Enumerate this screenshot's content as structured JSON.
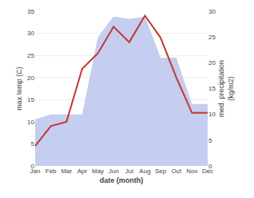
{
  "chart_data": {
    "type": "line",
    "categories": [
      "Jan",
      "Feb",
      "Mar",
      "Apr",
      "May",
      "Jun",
      "Jul",
      "Aug",
      "Sep",
      "Oct",
      "Nov",
      "Dec"
    ],
    "xlabel": "date (month)",
    "ylabel": "max temp (C)",
    "y2label": "med. precipitation\n(kg/m2)",
    "series": [
      {
        "type": "area",
        "axis": "y2",
        "color": "#c5cdf0",
        "values": [
          9.0,
          10.0,
          10.0,
          10.0,
          25.0,
          29.0,
          28.5,
          29.0,
          21.0,
          21.0,
          12.0,
          12.0
        ]
      },
      {
        "type": "line",
        "color": "#c0392b",
        "values": [
          4.5,
          9.0,
          10.0,
          22.0,
          25.5,
          31.5,
          28.0,
          34.0,
          29.0,
          20.0,
          12.0,
          12.0
        ]
      }
    ],
    "ylim": [
      0,
      35
    ],
    "yticks": [
      0,
      5,
      10,
      15,
      20,
      25,
      30,
      35
    ],
    "y2lim": [
      0,
      30
    ],
    "y2ticks": [
      0,
      5,
      10,
      15,
      20,
      25,
      30
    ],
    "grid": true
  }
}
